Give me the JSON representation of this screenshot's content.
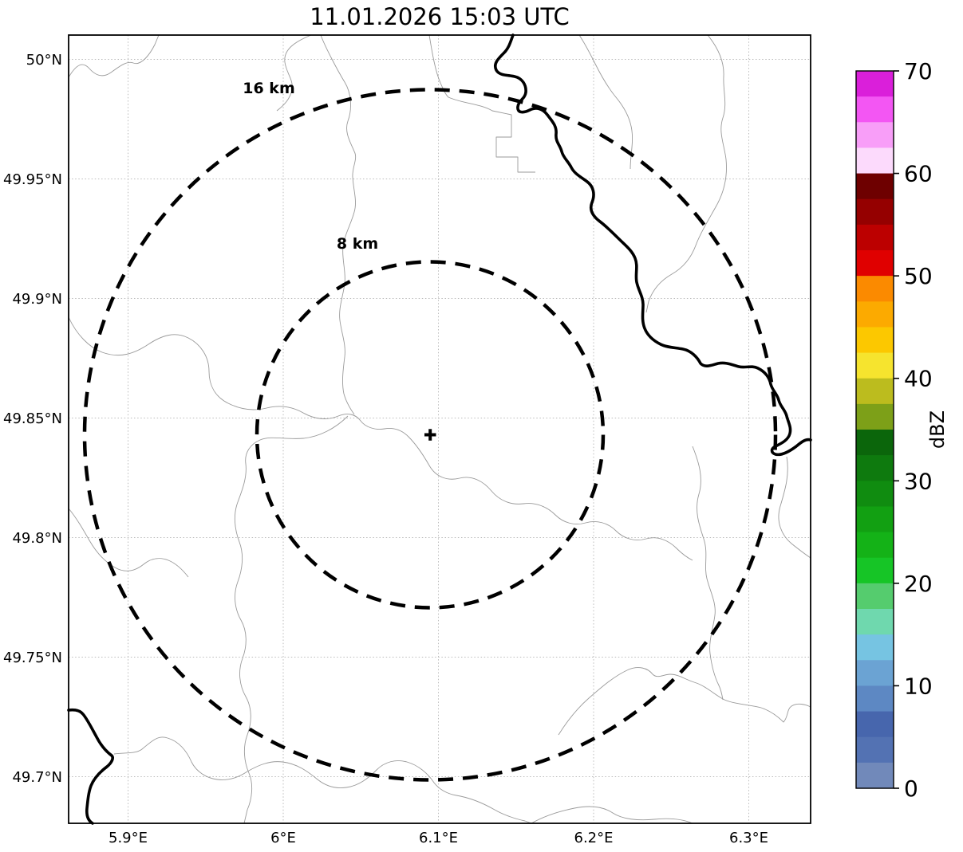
{
  "title": "11.01.2026 15:03 UTC",
  "map": {
    "x_axis": {
      "tick_labels": [
        "5.9°E",
        "6°E",
        "6.1°E",
        "6.2°E",
        "6.3°E"
      ]
    },
    "y_axis": {
      "tick_labels": [
        "50°N",
        "49.95°N",
        "49.9°N",
        "49.85°N",
        "49.8°N",
        "49.75°N",
        "49.7°N"
      ]
    },
    "range_rings": [
      {
        "label": "16 km",
        "radius_km": 16
      },
      {
        "label": "8 km",
        "radius_km": 8
      }
    ],
    "center_marker": {
      "symbol": "+"
    },
    "line_colors": {
      "admin_boundary": "#9a9a9a",
      "country_border": "#000000",
      "grid": "#bbbbbb"
    }
  },
  "colorbar": {
    "label": "dBZ",
    "min": 0,
    "max": 70,
    "segment_step_dbz": 2.5,
    "tick_labels_top_to_bottom": [
      "70",
      "60",
      "50",
      "40",
      "30",
      "20",
      "10",
      "0"
    ],
    "segment_colors_top_to_bottom": [
      "#da1fda",
      "#f356f3",
      "#f89ef8",
      "#fcdafc",
      "#6e0000",
      "#950000",
      "#bc0000",
      "#e00000",
      "#fb8a00",
      "#fcaa00",
      "#fcc800",
      "#f6e42e",
      "#bcbc1e",
      "#7da018",
      "#0b660b",
      "#0e7a0e",
      "#108c10",
      "#12a012",
      "#14b217",
      "#16c526",
      "#55cc6e",
      "#6fd8ae",
      "#76c4e2",
      "#6ba3d3",
      "#5d88c3",
      "#4766ad",
      "#5372b3",
      "#7189ba"
    ]
  }
}
